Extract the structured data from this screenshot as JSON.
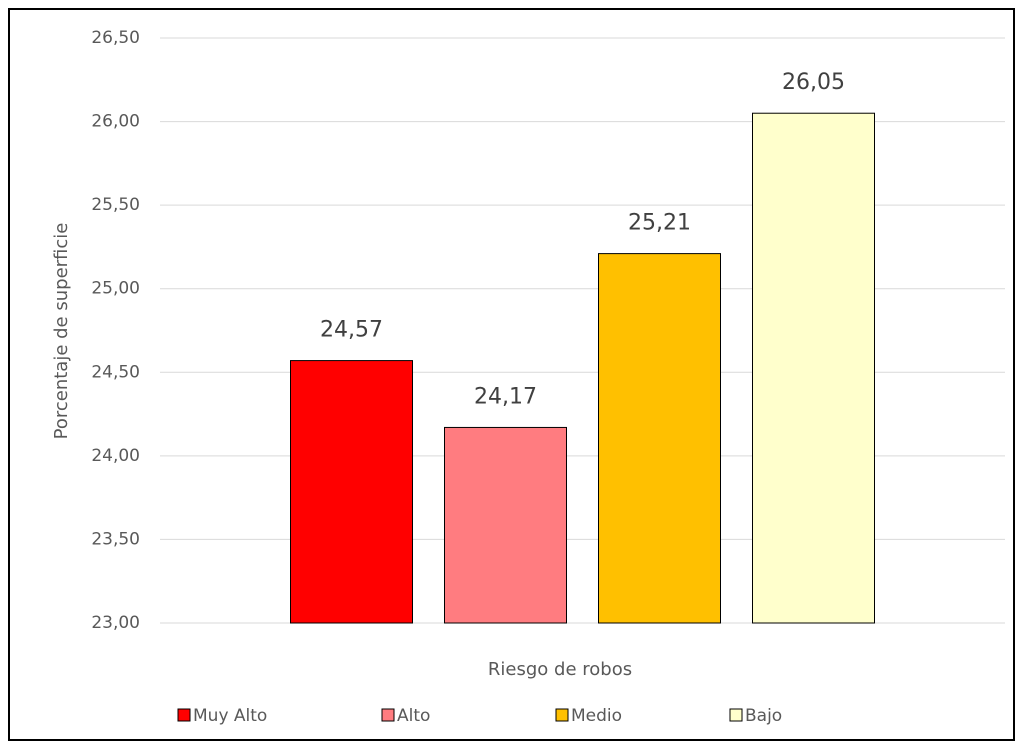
{
  "chart_data": {
    "type": "bar",
    "x_label": "Riesgo de robos",
    "y_label": "Porcentaje de superficie",
    "series": [
      {
        "name": "Muy Alto",
        "color": "#ff0000",
        "values": [
          24.57
        ],
        "value_labels": [
          "24,57"
        ]
      },
      {
        "name": "Alto",
        "color": "#ff7c80",
        "values": [
          24.17
        ],
        "value_labels": [
          "24,17"
        ]
      },
      {
        "name": "Medio",
        "color": "#ffc000",
        "values": [
          25.21
        ],
        "value_labels": [
          "25,21"
        ]
      },
      {
        "name": "Bajo",
        "color": "#ffffcc",
        "values": [
          26.05
        ],
        "value_labels": [
          "26,05"
        ]
      }
    ],
    "ylim": [
      23,
      26.5
    ],
    "yticks": [
      {
        "value": 23,
        "label": "23,00"
      },
      {
        "value": 23.5,
        "label": "23,50"
      },
      {
        "value": 24,
        "label": "24,00"
      },
      {
        "value": 24.5,
        "label": "24,50"
      },
      {
        "value": 25,
        "label": "25,00"
      },
      {
        "value": 25.5,
        "label": "25,50"
      },
      {
        "value": 26,
        "label": "26,00"
      },
      {
        "value": 26.5,
        "label": "26,50"
      }
    ],
    "grid": true,
    "legend": "bottom"
  }
}
